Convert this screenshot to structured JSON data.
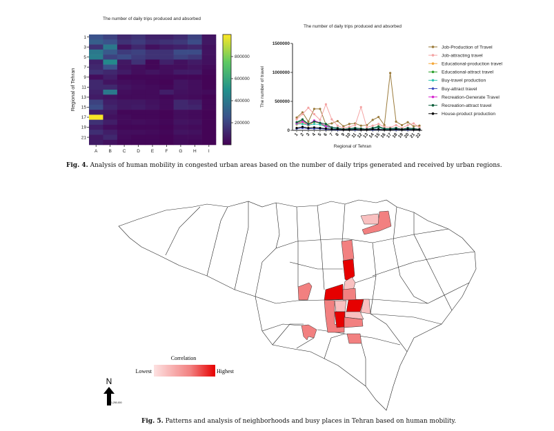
{
  "figure4": {
    "caption_label": "Fig. 4.",
    "caption_text": "Analysis of human mobility in congested urban areas based on the number of daily trips generated and received by urban regions."
  },
  "figure5": {
    "caption_label": "Fig. 5.",
    "caption_text": "Patterns and analysis of neighborhoods and busy places in Tehran based on human mobility.",
    "legend_title": "Correlation",
    "legend_low": "Lowest",
    "legend_high": "Highest",
    "legend_colors": [
      "#fde2e2",
      "#e8000b"
    ],
    "north_label": "N",
    "scale_label": "1,250,000",
    "fill_colors": {
      "light": "#f9c0c0",
      "medium": "#f28080",
      "high": "#e60000"
    }
  },
  "chart_data": [
    {
      "type": "heatmap",
      "title": "The number of daily trips produced and absorbed",
      "ylabel": "Regional of Tehran",
      "xlabel": "",
      "x_categories": [
        "A",
        "B",
        "C",
        "D",
        "E",
        "F",
        "G",
        "H",
        "I"
      ],
      "y_categories": [
        "1",
        "2",
        "3",
        "4",
        "5",
        "6",
        "7",
        "8",
        "9",
        "10",
        "11",
        "12",
        "13",
        "14",
        "15",
        "16",
        "17",
        "18",
        "19",
        "20",
        "21",
        "22"
      ],
      "y_tick_labels": [
        "1",
        "3",
        "5",
        "7",
        "9",
        "11",
        "13",
        "15",
        "17",
        "19",
        "21"
      ],
      "colorscale": "viridis",
      "color_range": [
        0,
        1000000
      ],
      "colorbar_ticks": [
        "200000",
        "400000",
        "600000",
        "800000"
      ],
      "values": [
        [
          250000,
          200000,
          120000,
          150000,
          100000,
          100000,
          130000,
          200000,
          60000
        ],
        [
          300000,
          250000,
          150000,
          180000,
          130000,
          150000,
          170000,
          230000,
          70000
        ],
        [
          150000,
          400000,
          60000,
          120000,
          50000,
          80000,
          100000,
          120000,
          50000
        ],
        [
          400000,
          280000,
          180000,
          200000,
          150000,
          150000,
          230000,
          230000,
          60000
        ],
        [
          420000,
          200000,
          230000,
          180000,
          150000,
          150000,
          200000,
          170000,
          50000
        ],
        [
          100000,
          470000,
          70000,
          150000,
          20000,
          100000,
          50000,
          80000,
          50000
        ],
        [
          120000,
          250000,
          60000,
          40000,
          20000,
          40000,
          40000,
          60000,
          30000
        ],
        [
          150000,
          120000,
          80000,
          40000,
          60000,
          40000,
          80000,
          80000,
          20000
        ],
        [
          40000,
          90000,
          20000,
          20000,
          20000,
          20000,
          20000,
          20000,
          10000
        ],
        [
          120000,
          60000,
          40000,
          30000,
          20000,
          10000,
          60000,
          40000,
          10000
        ],
        [
          120000,
          120000,
          60000,
          40000,
          30000,
          20000,
          60000,
          40000,
          10000
        ],
        [
          100000,
          400000,
          40000,
          30000,
          30000,
          90000,
          50000,
          40000,
          30000
        ],
        [
          80000,
          60000,
          30000,
          30000,
          30000,
          20000,
          40000,
          30000,
          10000
        ],
        [
          200000,
          90000,
          70000,
          70000,
          50000,
          30000,
          120000,
          90000,
          20000
        ],
        [
          230000,
          110000,
          70000,
          80000,
          60000,
          30000,
          120000,
          110000,
          20000
        ],
        [
          90000,
          70000,
          20000,
          20000,
          20000,
          10000,
          40000,
          30000,
          10000
        ],
        [
          990000,
          50000,
          30000,
          20000,
          20000,
          10000,
          40000,
          30000,
          10000
        ],
        [
          150000,
          90000,
          30000,
          40000,
          30000,
          20000,
          60000,
          50000,
          10000
        ],
        [
          90000,
          40000,
          20000,
          20000,
          20000,
          10000,
          40000,
          30000,
          10000
        ],
        [
          140000,
          90000,
          40000,
          40000,
          30000,
          20000,
          60000,
          50000,
          10000
        ],
        [
          70000,
          120000,
          30000,
          20000,
          20000,
          10000,
          30000,
          30000,
          10000
        ],
        [
          80000,
          50000,
          20000,
          20000,
          20000,
          10000,
          30000,
          20000,
          10000
        ]
      ]
    },
    {
      "type": "line",
      "title": "The number of daily trips produced and absorbed",
      "xlabel": "Regional of Tehran",
      "ylabel": "The number of travel",
      "x": [
        "1",
        "2",
        "3",
        "4",
        "5",
        "6",
        "7",
        "8",
        "9",
        "10",
        "11",
        "12",
        "13",
        "14",
        "15",
        "16",
        "17",
        "18",
        "19",
        "20",
        "21",
        "22"
      ],
      "ylim": [
        0,
        1500000
      ],
      "y_ticks": [
        "0",
        "500000",
        "1000000",
        "1500000"
      ],
      "legend_position": "right",
      "series": [
        {
          "name": "Job-Production of Travel",
          "color": "#9a7a3a",
          "values": [
            220000,
            310000,
            150000,
            370000,
            370000,
            100000,
            120000,
            160000,
            70000,
            110000,
            120000,
            80000,
            90000,
            180000,
            230000,
            90000,
            990000,
            150000,
            90000,
            140000,
            70000,
            80000
          ]
        },
        {
          "name": "Job-attracting travel",
          "color": "#f4a3a3",
          "values": [
            190000,
            280000,
            390000,
            280000,
            180000,
            450000,
            190000,
            80000,
            40000,
            60000,
            90000,
            400000,
            50000,
            80000,
            110000,
            60000,
            50000,
            90000,
            40000,
            90000,
            120000,
            50000
          ]
        },
        {
          "name": "Educational-production travel",
          "color": "#f5a83a",
          "values": [
            100000,
            140000,
            80000,
            150000,
            120000,
            60000,
            40000,
            40000,
            20000,
            30000,
            40000,
            30000,
            20000,
            40000,
            60000,
            30000,
            30000,
            40000,
            20000,
            40000,
            30000,
            20000
          ]
        },
        {
          "name": "Educational-attract travel",
          "color": "#2ca02c",
          "values": [
            130000,
            170000,
            110000,
            160000,
            120000,
            80000,
            50000,
            40000,
            20000,
            30000,
            40000,
            30000,
            20000,
            40000,
            70000,
            30000,
            30000,
            40000,
            20000,
            40000,
            30000,
            20000
          ]
        },
        {
          "name": "Buy-travel production",
          "color": "#2ec4b0",
          "values": [
            110000,
            110000,
            90000,
            110000,
            100000,
            60000,
            40000,
            30000,
            20000,
            20000,
            30000,
            30000,
            20000,
            30000,
            50000,
            20000,
            20000,
            30000,
            20000,
            30000,
            20000,
            20000
          ]
        },
        {
          "name": "Buy-attract travel",
          "color": "#3b4cc0",
          "values": [
            30000,
            40000,
            30000,
            30000,
            30000,
            20000,
            15000,
            10000,
            10000,
            10000,
            10000,
            10000,
            10000,
            10000,
            15000,
            10000,
            10000,
            10000,
            10000,
            10000,
            10000,
            10000
          ]
        },
        {
          "name": "Recreation-Generate Travel",
          "color": "#d62ad0",
          "values": [
            120000,
            150000,
            100000,
            170000,
            130000,
            70000,
            50000,
            40000,
            20000,
            30000,
            40000,
            30000,
            20000,
            40000,
            60000,
            30000,
            30000,
            40000,
            20000,
            40000,
            30000,
            20000
          ]
        },
        {
          "name": "Recreation-attract travel",
          "color": "#0b5e3a",
          "values": [
            140000,
            190000,
            110000,
            150000,
            130000,
            110000,
            50000,
            40000,
            20000,
            30000,
            40000,
            30000,
            20000,
            40000,
            60000,
            30000,
            30000,
            40000,
            20000,
            40000,
            30000,
            20000
          ]
        },
        {
          "name": "House-product production",
          "color": "#000000",
          "values": [
            40000,
            60000,
            40000,
            50000,
            40000,
            30000,
            20000,
            20000,
            10000,
            10000,
            20000,
            10000,
            10000,
            20000,
            20000,
            10000,
            10000,
            20000,
            10000,
            20000,
            10000,
            10000
          ]
        }
      ]
    }
  ]
}
